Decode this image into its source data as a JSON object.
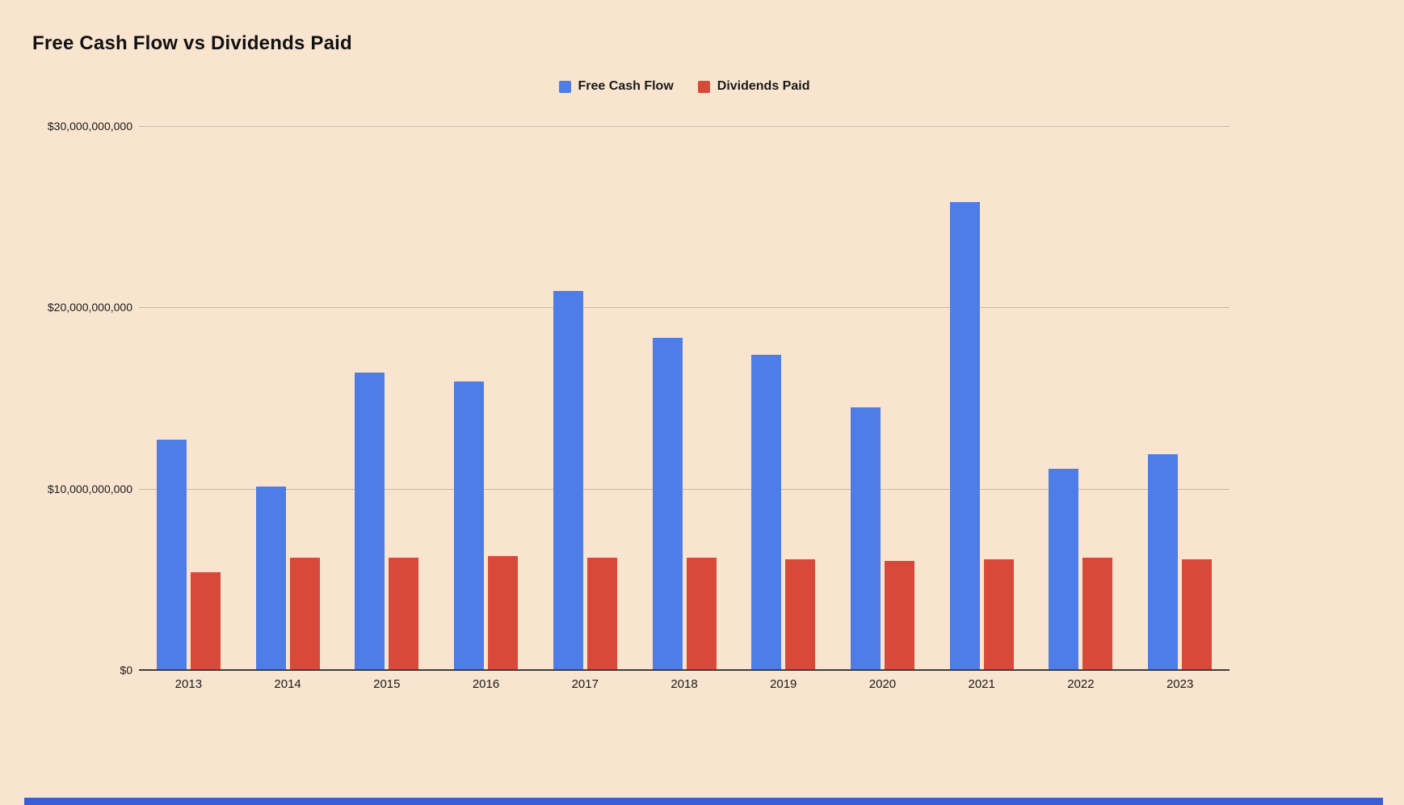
{
  "page": {
    "background_color": "#f9e5cf",
    "footer_bar_color": "#3b5ed8"
  },
  "chart_data": {
    "type": "bar",
    "title": "Free Cash Flow vs Dividends Paid",
    "xlabel": "",
    "ylabel": "",
    "grid": true,
    "legend_position": "top-center",
    "ylim": [
      0,
      30000000000
    ],
    "categories": [
      "2013",
      "2014",
      "2015",
      "2016",
      "2017",
      "2018",
      "2019",
      "2020",
      "2021",
      "2022",
      "2023"
    ],
    "series": [
      {
        "name": "Free Cash Flow",
        "color": "#4e7de7",
        "values": [
          12700000000,
          10100000000,
          16400000000,
          15900000000,
          20900000000,
          18300000000,
          17400000000,
          14500000000,
          25800000000,
          11100000000,
          11900000000
        ]
      },
      {
        "name": "Dividends Paid",
        "color": "#d9493a",
        "values": [
          5400000000,
          6200000000,
          6200000000,
          6300000000,
          6200000000,
          6200000000,
          6100000000,
          6000000000,
          6100000000,
          6200000000,
          6100000000
        ]
      }
    ],
    "y_ticks": [
      {
        "value": 0,
        "label": "$0"
      },
      {
        "value": 10000000000,
        "label": "$10,000,000,000"
      },
      {
        "value": 20000000000,
        "label": "$20,000,000,000"
      },
      {
        "value": 30000000000,
        "label": "$30,000,000,000"
      }
    ]
  }
}
